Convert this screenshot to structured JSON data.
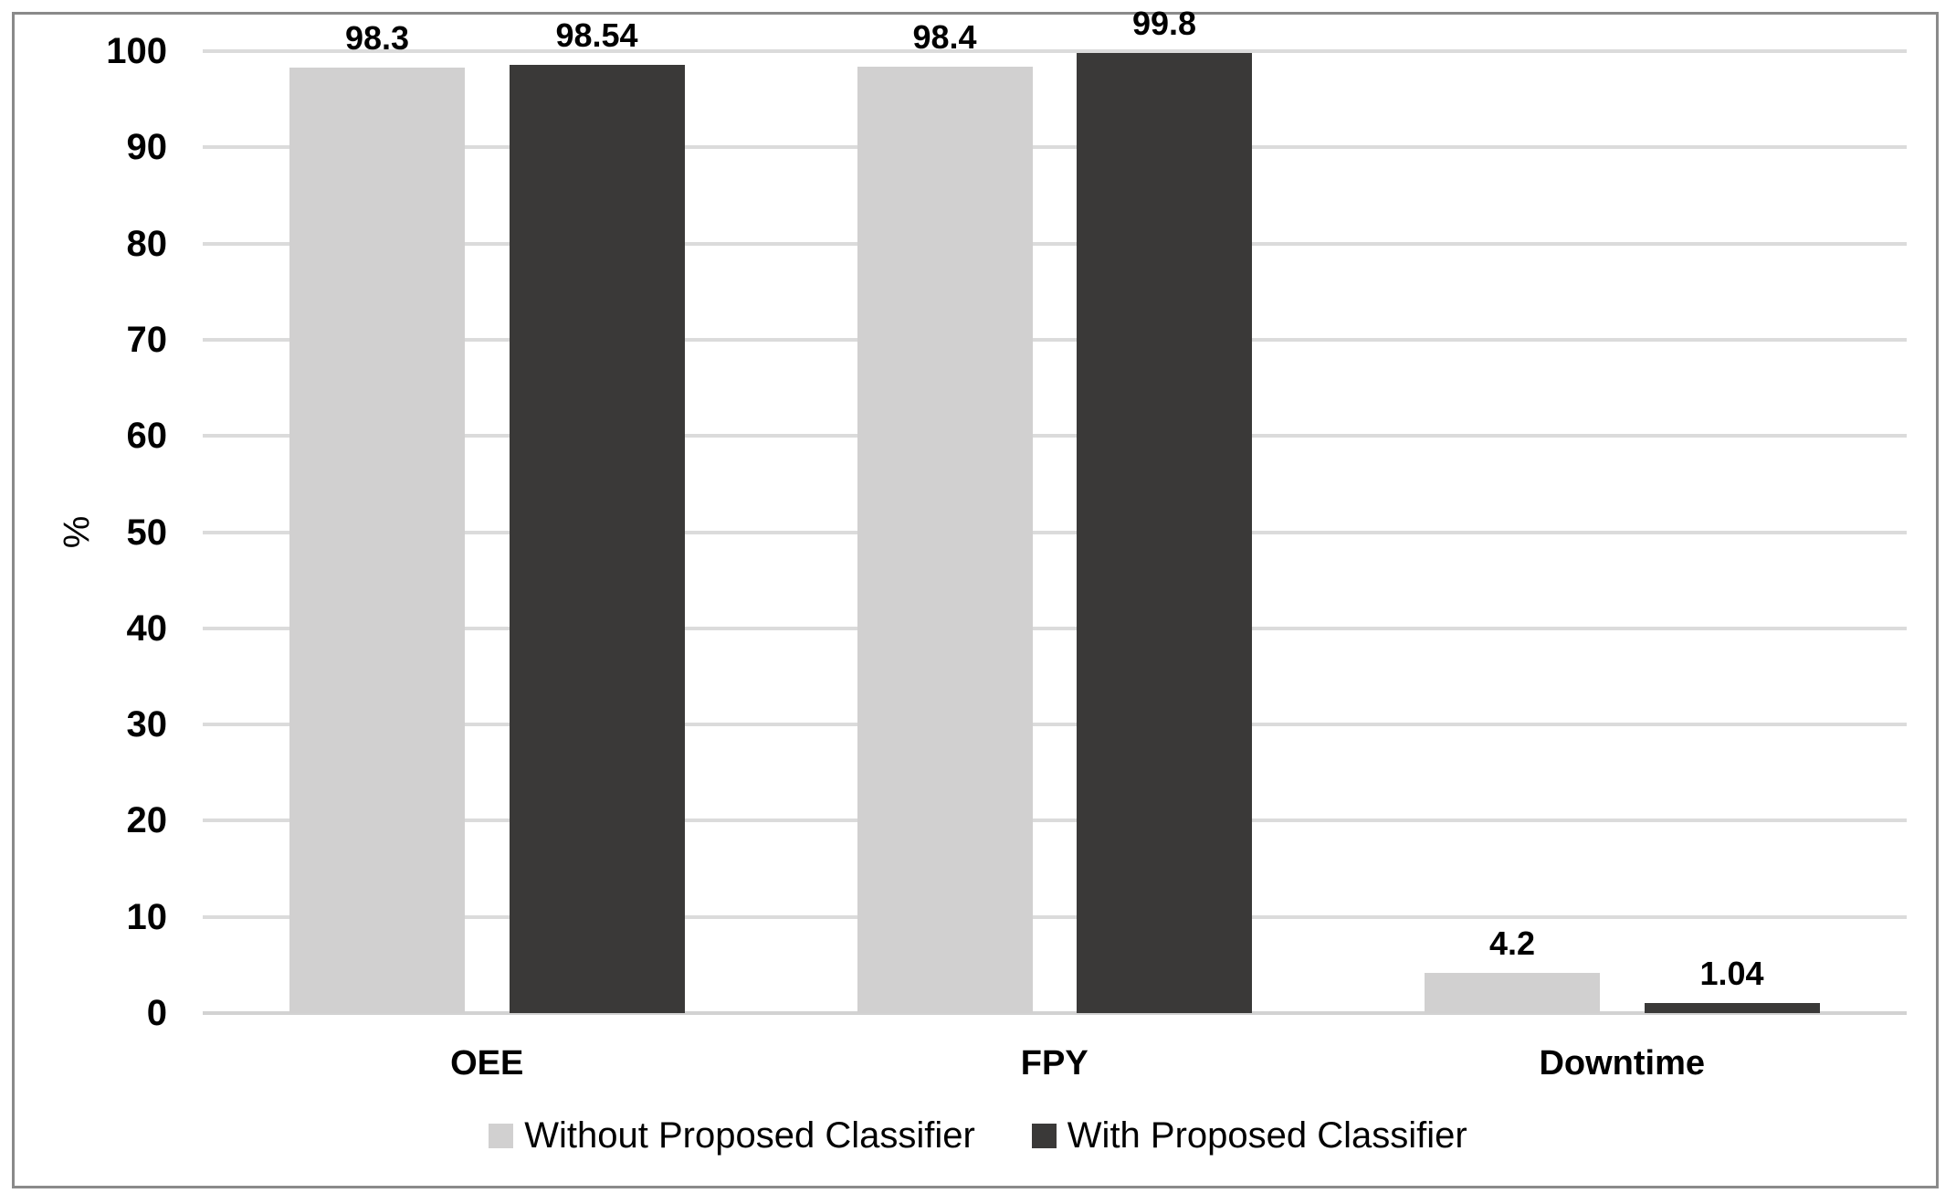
{
  "chart_data": {
    "type": "bar",
    "title": "",
    "xlabel": "",
    "ylabel": "%",
    "categories": [
      "OEE",
      "FPY",
      "Downtime"
    ],
    "series": [
      {
        "name": "Without Proposed Classifier",
        "color": "#d1d0d0",
        "values": [
          98.3,
          98.4,
          4.2
        ]
      },
      {
        "name": "With Proposed Classifier",
        "color": "#3a3938",
        "values": [
          98.54,
          99.8,
          1.04
        ]
      }
    ],
    "ylim": [
      0,
      100
    ],
    "yticks": [
      0,
      10,
      20,
      30,
      40,
      50,
      60,
      70,
      80,
      90,
      100
    ],
    "grid": true,
    "legend_position": "bottom",
    "colors": {
      "gridline": "#dbdbdb",
      "axis_line": "#d2d2d2",
      "frame_border": "#8a8a8a",
      "text": "#000000",
      "background": "#ffffff"
    }
  }
}
